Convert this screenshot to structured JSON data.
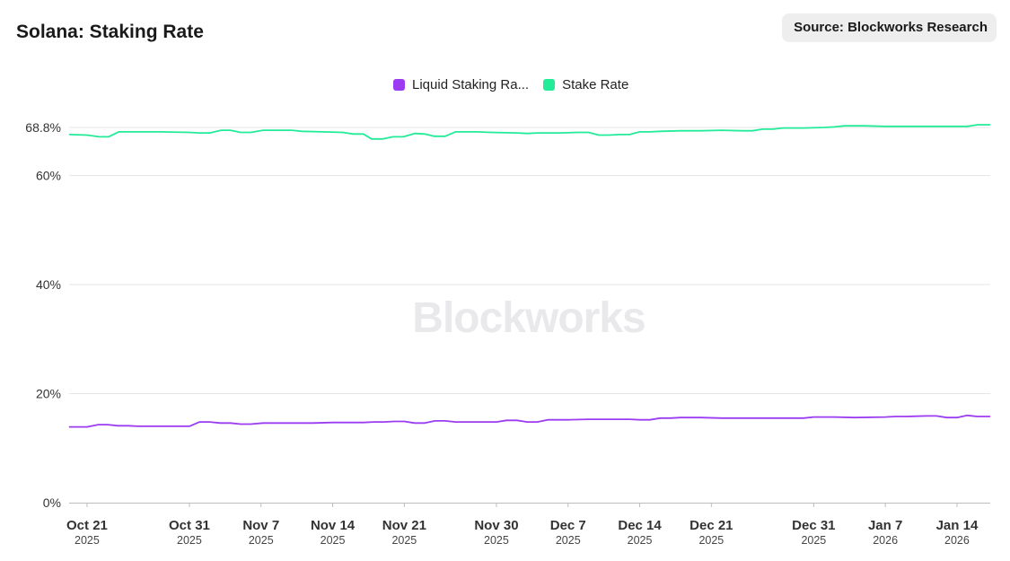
{
  "header": {
    "title": "Solana: Staking Rate",
    "source": "Source: Blockworks Research"
  },
  "watermark": "Blockworks",
  "colors": {
    "liquid": "#9b3cf2",
    "stake": "#23ec98",
    "grid": "#e6e6e6",
    "axis": "#bdbdbd"
  },
  "chart_data": {
    "type": "line",
    "title": "Solana: Staking Rate",
    "ylim": [
      0,
      70
    ],
    "y_ticks": [
      {
        "value": 0,
        "label": "0%"
      },
      {
        "value": 20,
        "label": "20%"
      },
      {
        "value": 40,
        "label": "40%"
      },
      {
        "value": 60,
        "label": "60%"
      },
      {
        "value": 68.8,
        "label": "68.8%"
      }
    ],
    "x_ticks": [
      {
        "day": 3,
        "label": "Oct 21",
        "year": "2025"
      },
      {
        "day": 13,
        "label": "Oct 31",
        "year": "2025"
      },
      {
        "day": 20,
        "label": "Nov 7",
        "year": "2025"
      },
      {
        "day": 27,
        "label": "Nov 14",
        "year": "2025"
      },
      {
        "day": 34,
        "label": "Nov 21",
        "year": "2025"
      },
      {
        "day": 43,
        "label": "Nov 30",
        "year": "2025"
      },
      {
        "day": 50,
        "label": "Dec 7",
        "year": "2025"
      },
      {
        "day": 57,
        "label": "Dec 14",
        "year": "2025"
      },
      {
        "day": 64,
        "label": "Dec 21",
        "year": "2025"
      },
      {
        "day": 74,
        "label": "Dec 31",
        "year": "2025"
      },
      {
        "day": 81,
        "label": "Jan 7",
        "year": "2026"
      },
      {
        "day": 88,
        "label": "Jan 14",
        "year": "2026"
      }
    ],
    "x_domain": [
      1.25,
      91.25
    ],
    "series": [
      {
        "name": "Stake Rate",
        "legend_label": "Stake Rate",
        "values": [
          [
            1.3,
            67.5
          ],
          [
            3.0,
            67.4
          ],
          [
            4.2,
            67.1
          ],
          [
            5.1,
            67.1
          ],
          [
            6.1,
            68.0
          ],
          [
            8.0,
            68.0
          ],
          [
            10.0,
            68.0
          ],
          [
            13.0,
            67.9
          ],
          [
            14.0,
            67.8
          ],
          [
            15.0,
            67.8
          ],
          [
            16.1,
            68.3
          ],
          [
            17.0,
            68.3
          ],
          [
            18.0,
            67.9
          ],
          [
            19.0,
            67.9
          ],
          [
            20.2,
            68.3
          ],
          [
            22.0,
            68.3
          ],
          [
            23.0,
            68.3
          ],
          [
            24.0,
            68.1
          ],
          [
            26.0,
            68.0
          ],
          [
            28.0,
            67.9
          ],
          [
            29.0,
            67.6
          ],
          [
            30.0,
            67.6
          ],
          [
            30.8,
            66.7
          ],
          [
            31.9,
            66.7
          ],
          [
            32.9,
            67.1
          ],
          [
            33.9,
            67.1
          ],
          [
            35.0,
            67.7
          ],
          [
            36.0,
            67.6
          ],
          [
            36.9,
            67.2
          ],
          [
            38.0,
            67.2
          ],
          [
            39.0,
            68.0
          ],
          [
            41.0,
            68.0
          ],
          [
            42.5,
            67.9
          ],
          [
            45.0,
            67.8
          ],
          [
            46.0,
            67.7
          ],
          [
            47.0,
            67.8
          ],
          [
            49.0,
            67.8
          ],
          [
            51.0,
            67.9
          ],
          [
            52.0,
            67.9
          ],
          [
            53.0,
            67.4
          ],
          [
            54.0,
            67.4
          ],
          [
            55.0,
            67.5
          ],
          [
            56.0,
            67.5
          ],
          [
            57.0,
            68.0
          ],
          [
            58.0,
            68.0
          ],
          [
            59.0,
            68.1
          ],
          [
            61.0,
            68.2
          ],
          [
            63.0,
            68.2
          ],
          [
            65.0,
            68.3
          ],
          [
            67.0,
            68.2
          ],
          [
            68.0,
            68.2
          ],
          [
            69.0,
            68.5
          ],
          [
            70.0,
            68.5
          ],
          [
            71.0,
            68.7
          ],
          [
            73.0,
            68.7
          ],
          [
            75.0,
            68.8
          ],
          [
            76.0,
            68.9
          ],
          [
            77.0,
            69.1
          ],
          [
            79.0,
            69.1
          ],
          [
            81.0,
            69.0
          ],
          [
            83.0,
            69.0
          ],
          [
            85.0,
            69.0
          ],
          [
            87.0,
            69.0
          ],
          [
            89.0,
            69.0
          ],
          [
            90.0,
            69.3
          ],
          [
            91.2,
            69.3
          ]
        ]
      },
      {
        "name": "Liquid Staking Rate",
        "legend_label": "Liquid Staking Ra...",
        "values": [
          [
            1.3,
            13.9
          ],
          [
            3.0,
            13.9
          ],
          [
            4.1,
            14.3
          ],
          [
            5.0,
            14.3
          ],
          [
            6.0,
            14.1
          ],
          [
            7.0,
            14.1
          ],
          [
            8.0,
            14.0
          ],
          [
            12.0,
            14.0
          ],
          [
            13.0,
            14.0
          ],
          [
            14.0,
            14.8
          ],
          [
            15.0,
            14.8
          ],
          [
            16.0,
            14.6
          ],
          [
            17.0,
            14.6
          ],
          [
            18.0,
            14.4
          ],
          [
            19.0,
            14.4
          ],
          [
            20.2,
            14.6
          ],
          [
            22.0,
            14.6
          ],
          [
            25.0,
            14.6
          ],
          [
            27.0,
            14.7
          ],
          [
            30.0,
            14.7
          ],
          [
            31.0,
            14.8
          ],
          [
            32.0,
            14.8
          ],
          [
            33.0,
            14.9
          ],
          [
            34.0,
            14.9
          ],
          [
            35.0,
            14.6
          ],
          [
            36.0,
            14.6
          ],
          [
            37.0,
            15.0
          ],
          [
            38.0,
            15.0
          ],
          [
            39.0,
            14.8
          ],
          [
            41.0,
            14.8
          ],
          [
            43.0,
            14.8
          ],
          [
            44.0,
            15.1
          ],
          [
            45.0,
            15.1
          ],
          [
            46.0,
            14.8
          ],
          [
            47.0,
            14.8
          ],
          [
            48.0,
            15.2
          ],
          [
            50.0,
            15.2
          ],
          [
            52.0,
            15.3
          ],
          [
            54.0,
            15.3
          ],
          [
            56.0,
            15.3
          ],
          [
            57.0,
            15.2
          ],
          [
            58.0,
            15.2
          ],
          [
            59.0,
            15.5
          ],
          [
            60.0,
            15.5
          ],
          [
            61.0,
            15.6
          ],
          [
            63.0,
            15.6
          ],
          [
            65.0,
            15.5
          ],
          [
            67.0,
            15.5
          ],
          [
            69.0,
            15.5
          ],
          [
            71.0,
            15.5
          ],
          [
            73.0,
            15.5
          ],
          [
            74.0,
            15.7
          ],
          [
            76.0,
            15.7
          ],
          [
            78.0,
            15.6
          ],
          [
            81.0,
            15.7
          ],
          [
            82.0,
            15.8
          ],
          [
            83.0,
            15.8
          ],
          [
            85.0,
            15.9
          ],
          [
            86.0,
            15.9
          ],
          [
            87.0,
            15.6
          ],
          [
            88.0,
            15.6
          ],
          [
            89.0,
            16.0
          ],
          [
            90.0,
            15.8
          ],
          [
            91.2,
            15.8
          ]
        ]
      }
    ]
  }
}
